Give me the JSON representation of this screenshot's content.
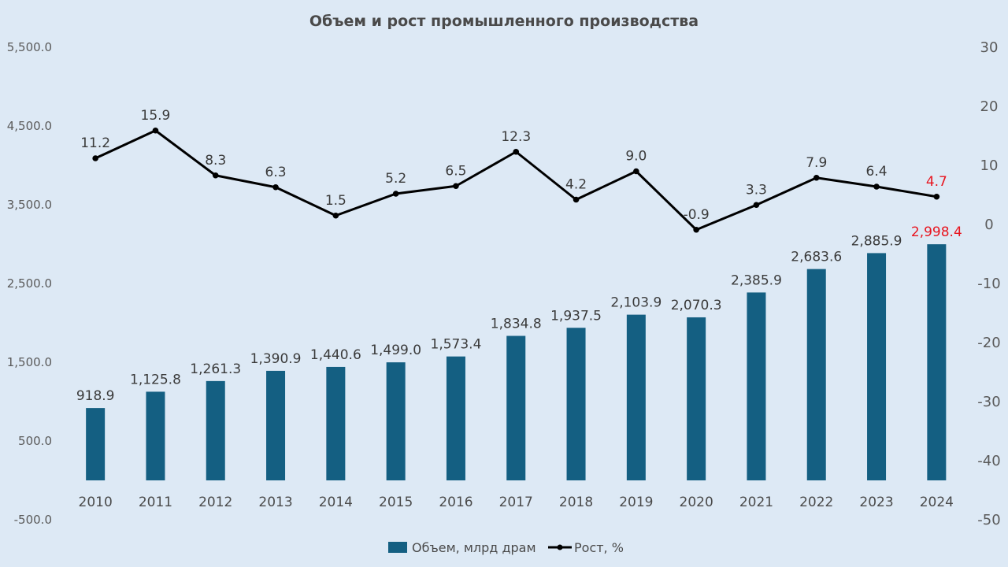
{
  "chart_data": {
    "type": "bar+line",
    "title": "Объем и рост промышленного производства",
    "categories": [
      "2010",
      "2011",
      "2012",
      "2013",
      "2014",
      "2015",
      "2016",
      "2017",
      "2018",
      "2019",
      "2020",
      "2021",
      "2022",
      "2023",
      "2024"
    ],
    "series": [
      {
        "name": "Объем, млрд драм",
        "type": "bar",
        "axis": "left",
        "color": "#145f82",
        "values": [
          918.9,
          1125.8,
          1261.3,
          1390.9,
          1440.6,
          1499.0,
          1573.4,
          1834.8,
          1937.5,
          2103.9,
          2070.3,
          2385.9,
          2683.6,
          2885.9,
          2998.4
        ],
        "labels": [
          "918.9",
          "1,125.8",
          "1,261.3",
          "1,390.9",
          "1,440.6",
          "1,499.0",
          "1,573.4",
          "1,834.8",
          "1,937.5",
          "2,103.9",
          "2,070.3",
          "2,385.9",
          "2,683.6",
          "2,885.9",
          "2,998.4"
        ]
      },
      {
        "name": "Рост, %",
        "type": "line",
        "axis": "right",
        "color": "#000000",
        "values": [
          11.2,
          15.9,
          8.3,
          6.3,
          1.5,
          5.2,
          6.5,
          12.3,
          4.2,
          9.0,
          -0.9,
          3.3,
          7.9,
          6.4,
          4.7
        ],
        "labels": [
          "11.2",
          "15.9",
          "8.3",
          "6.3",
          "1.5",
          "5.2",
          "6.5",
          "12.3",
          "4.2",
          "9.0",
          "-0.9",
          "3.3",
          "7.9",
          "6.4",
          "4.7"
        ]
      }
    ],
    "highlight_color": "#e8141e",
    "highlight_index": 14,
    "left_axis": {
      "ylim": [
        -500,
        5500
      ],
      "ticks": [
        5500,
        4500,
        3500,
        2500,
        1500,
        500,
        -500
      ],
      "tick_labels": [
        "5,500.0",
        "4,500.0",
        "3,500.0",
        "2,500.0",
        "1,500.0",
        "500.0",
        "-500.0"
      ]
    },
    "right_axis": {
      "ylim": [
        -50,
        30
      ],
      "ticks": [
        30,
        20,
        10,
        0,
        -10,
        -20,
        -30,
        -40,
        -50
      ],
      "tick_labels": [
        "30",
        "20",
        "10",
        "0",
        "-10",
        "-20",
        "-30",
        "-40",
        "-50"
      ]
    },
    "legend": {
      "position": "bottom",
      "items": [
        "Объем, млрд драм",
        "Рост, %"
      ]
    },
    "grid": false
  }
}
